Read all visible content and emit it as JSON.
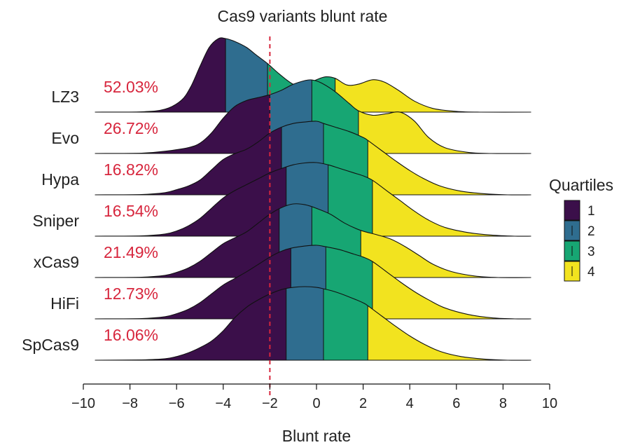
{
  "chart_data": {
    "type": "ridgeline",
    "title": "Cas9 variants blunt rate",
    "xlabel": "Blunt rate",
    "xlim": [
      -10,
      10
    ],
    "xticks": [
      -10,
      -8,
      -6,
      -4,
      -2,
      0,
      2,
      4,
      6,
      8,
      10
    ],
    "xtick_labels": [
      "−10",
      "−8",
      "−6",
      "−4",
      "−2",
      "0",
      "2",
      "4",
      "6",
      "8",
      "10"
    ],
    "threshold": -2,
    "legend": {
      "title": "Quartiles",
      "position": "right",
      "entries": [
        {
          "label": "1",
          "color": "#3b0f4a"
        },
        {
          "label": "2",
          "color": "#2f6d8f"
        },
        {
          "label": "3",
          "color": "#17a673"
        },
        {
          "label": "4",
          "color": "#f2e31f"
        }
      ]
    },
    "series": [
      {
        "name": "LZ3",
        "percent_label": "52.03%",
        "quartiles": [
          -3.9,
          -2.1,
          0.8
        ],
        "density": [
          [
            -9.5,
            0
          ],
          [
            -7.5,
            0.005
          ],
          [
            -6.5,
            0.04
          ],
          [
            -5.8,
            0.16
          ],
          [
            -5.4,
            0.34
          ],
          [
            -5.0,
            0.62
          ],
          [
            -4.6,
            0.88
          ],
          [
            -4.2,
            1.0
          ],
          [
            -3.9,
            1.0
          ],
          [
            -3.5,
            0.96
          ],
          [
            -3.0,
            0.88
          ],
          [
            -2.6,
            0.78
          ],
          [
            -2.1,
            0.66
          ],
          [
            -1.6,
            0.52
          ],
          [
            -1.0,
            0.38
          ],
          [
            -0.5,
            0.36
          ],
          [
            0,
            0.44
          ],
          [
            0.4,
            0.48
          ],
          [
            0.8,
            0.46
          ],
          [
            1.3,
            0.37
          ],
          [
            1.8,
            0.38
          ],
          [
            2.4,
            0.44
          ],
          [
            2.9,
            0.41
          ],
          [
            3.5,
            0.3
          ],
          [
            4.2,
            0.15
          ],
          [
            5.0,
            0.05
          ],
          [
            6.0,
            0.01
          ],
          [
            7.0,
            0
          ],
          [
            9.2,
            0
          ]
        ]
      },
      {
        "name": "Evo",
        "percent_label": "26.72%",
        "quartiles": [
          -2.0,
          -0.2,
          1.8
        ],
        "density": [
          [
            -9.5,
            0
          ],
          [
            -7.5,
            0.005
          ],
          [
            -6.5,
            0.03
          ],
          [
            -5.5,
            0.08
          ],
          [
            -5.0,
            0.14
          ],
          [
            -4.5,
            0.28
          ],
          [
            -4.0,
            0.48
          ],
          [
            -3.5,
            0.64
          ],
          [
            -3.0,
            0.72
          ],
          [
            -2.5,
            0.76
          ],
          [
            -2.0,
            0.8
          ],
          [
            -1.5,
            0.86
          ],
          [
            -1.0,
            0.94
          ],
          [
            -0.5,
            0.99
          ],
          [
            -0.2,
            1.0
          ],
          [
            0.2,
            0.96
          ],
          [
            0.8,
            0.84
          ],
          [
            1.4,
            0.68
          ],
          [
            1.8,
            0.58
          ],
          [
            2.4,
            0.52
          ],
          [
            3.0,
            0.54
          ],
          [
            3.6,
            0.56
          ],
          [
            4.2,
            0.44
          ],
          [
            4.8,
            0.22
          ],
          [
            5.5,
            0.08
          ],
          [
            6.5,
            0.015
          ],
          [
            7.5,
            0
          ],
          [
            9.2,
            0
          ]
        ]
      },
      {
        "name": "Hypa",
        "percent_label": "16.82%",
        "quartiles": [
          -1.5,
          0.3,
          2.2
        ],
        "density": [
          [
            -9.5,
            0
          ],
          [
            -7.5,
            0.005
          ],
          [
            -6.5,
            0.03
          ],
          [
            -6.0,
            0.07
          ],
          [
            -5.5,
            0.12
          ],
          [
            -5.0,
            0.2
          ],
          [
            -4.5,
            0.34
          ],
          [
            -4.0,
            0.48
          ],
          [
            -3.5,
            0.56
          ],
          [
            -3.0,
            0.62
          ],
          [
            -2.5,
            0.72
          ],
          [
            -2.0,
            0.84
          ],
          [
            -1.5,
            0.92
          ],
          [
            -1.0,
            0.97
          ],
          [
            -0.5,
            0.99
          ],
          [
            0,
            1.0
          ],
          [
            0.3,
            0.97
          ],
          [
            0.8,
            0.92
          ],
          [
            1.4,
            0.86
          ],
          [
            2.0,
            0.78
          ],
          [
            2.2,
            0.74
          ],
          [
            2.8,
            0.6
          ],
          [
            3.4,
            0.46
          ],
          [
            4.0,
            0.33
          ],
          [
            4.6,
            0.22
          ],
          [
            5.3,
            0.12
          ],
          [
            6.2,
            0.05
          ],
          [
            7.2,
            0.015
          ],
          [
            8.2,
            0
          ],
          [
            9.2,
            0
          ]
        ]
      },
      {
        "name": "Sniper",
        "percent_label": "16.54%",
        "quartiles": [
          -1.3,
          0.5,
          2.4
        ],
        "density": [
          [
            -9.5,
            0
          ],
          [
            -7.5,
            0.005
          ],
          [
            -6.5,
            0.03
          ],
          [
            -6.0,
            0.07
          ],
          [
            -5.5,
            0.14
          ],
          [
            -5.0,
            0.24
          ],
          [
            -4.5,
            0.38
          ],
          [
            -4.0,
            0.52
          ],
          [
            -3.5,
            0.62
          ],
          [
            -3.0,
            0.7
          ],
          [
            -2.5,
            0.78
          ],
          [
            -2.0,
            0.86
          ],
          [
            -1.5,
            0.92
          ],
          [
            -1.0,
            0.97
          ],
          [
            -0.5,
            0.995
          ],
          [
            0,
            1.0
          ],
          [
            0.5,
            0.97
          ],
          [
            1.0,
            0.92
          ],
          [
            1.6,
            0.86
          ],
          [
            2.0,
            0.82
          ],
          [
            2.4,
            0.76
          ],
          [
            3.0,
            0.62
          ],
          [
            3.6,
            0.48
          ],
          [
            4.2,
            0.34
          ],
          [
            4.8,
            0.22
          ],
          [
            5.5,
            0.12
          ],
          [
            6.5,
            0.05
          ],
          [
            7.5,
            0.015
          ],
          [
            8.5,
            0
          ],
          [
            9.2,
            0
          ]
        ]
      },
      {
        "name": "xCas9",
        "percent_label": "21.49%",
        "quartiles": [
          -1.6,
          -0.2,
          1.9
        ],
        "density": [
          [
            -9.5,
            0
          ],
          [
            -7.5,
            0.005
          ],
          [
            -6.5,
            0.03
          ],
          [
            -6.0,
            0.07
          ],
          [
            -5.5,
            0.13
          ],
          [
            -5.0,
            0.22
          ],
          [
            -4.5,
            0.34
          ],
          [
            -4.0,
            0.46
          ],
          [
            -3.5,
            0.54
          ],
          [
            -3.0,
            0.62
          ],
          [
            -2.5,
            0.74
          ],
          [
            -2.0,
            0.86
          ],
          [
            -1.5,
            0.95
          ],
          [
            -1.0,
            1.0
          ],
          [
            -0.5,
            0.99
          ],
          [
            0,
            0.94
          ],
          [
            0.6,
            0.86
          ],
          [
            1.2,
            0.74
          ],
          [
            1.9,
            0.64
          ],
          [
            2.6,
            0.58
          ],
          [
            3.2,
            0.52
          ],
          [
            3.8,
            0.42
          ],
          [
            4.4,
            0.3
          ],
          [
            5.0,
            0.18
          ],
          [
            5.8,
            0.08
          ],
          [
            6.8,
            0.02
          ],
          [
            7.8,
            0
          ],
          [
            9.2,
            0
          ]
        ]
      },
      {
        "name": "HiFi",
        "percent_label": "12.73%",
        "quartiles": [
          -1.1,
          0.4,
          2.4
        ],
        "density": [
          [
            -9.5,
            0
          ],
          [
            -7.5,
            0.005
          ],
          [
            -6.5,
            0.03
          ],
          [
            -6.0,
            0.07
          ],
          [
            -5.5,
            0.13
          ],
          [
            -5.0,
            0.22
          ],
          [
            -4.5,
            0.34
          ],
          [
            -4.0,
            0.46
          ],
          [
            -3.5,
            0.55
          ],
          [
            -3.0,
            0.64
          ],
          [
            -2.5,
            0.74
          ],
          [
            -2.0,
            0.84
          ],
          [
            -1.5,
            0.92
          ],
          [
            -1.1,
            0.96
          ],
          [
            -0.5,
            0.99
          ],
          [
            0,
            1.0
          ],
          [
            0.4,
            0.98
          ],
          [
            1.0,
            0.94
          ],
          [
            1.6,
            0.88
          ],
          [
            2.0,
            0.84
          ],
          [
            2.4,
            0.78
          ],
          [
            3.0,
            0.64
          ],
          [
            3.6,
            0.5
          ],
          [
            4.2,
            0.37
          ],
          [
            4.8,
            0.26
          ],
          [
            5.5,
            0.15
          ],
          [
            6.5,
            0.06
          ],
          [
            7.5,
            0.015
          ],
          [
            8.5,
            0
          ],
          [
            9.2,
            0
          ]
        ]
      },
      {
        "name": "SpCas9",
        "percent_label": "16.06%",
        "quartiles": [
          -1.3,
          0.3,
          2.2
        ],
        "density": [
          [
            -9.5,
            0
          ],
          [
            -7.5,
            0.005
          ],
          [
            -6.5,
            0.02
          ],
          [
            -6.0,
            0.05
          ],
          [
            -5.5,
            0.1
          ],
          [
            -5.0,
            0.17
          ],
          [
            -4.5,
            0.26
          ],
          [
            -4.0,
            0.4
          ],
          [
            -3.5,
            0.58
          ],
          [
            -3.0,
            0.72
          ],
          [
            -2.5,
            0.82
          ],
          [
            -2.0,
            0.9
          ],
          [
            -1.5,
            0.96
          ],
          [
            -1.0,
            0.99
          ],
          [
            -0.5,
            1.0
          ],
          [
            0,
            0.99
          ],
          [
            0.3,
            0.97
          ],
          [
            0.8,
            0.93
          ],
          [
            1.4,
            0.86
          ],
          [
            2.0,
            0.78
          ],
          [
            2.2,
            0.74
          ],
          [
            2.8,
            0.6
          ],
          [
            3.4,
            0.46
          ],
          [
            4.0,
            0.33
          ],
          [
            4.6,
            0.22
          ],
          [
            5.3,
            0.12
          ],
          [
            6.2,
            0.05
          ],
          [
            7.2,
            0.015
          ],
          [
            8.2,
            0
          ],
          [
            9.2,
            0
          ]
        ]
      }
    ]
  }
}
